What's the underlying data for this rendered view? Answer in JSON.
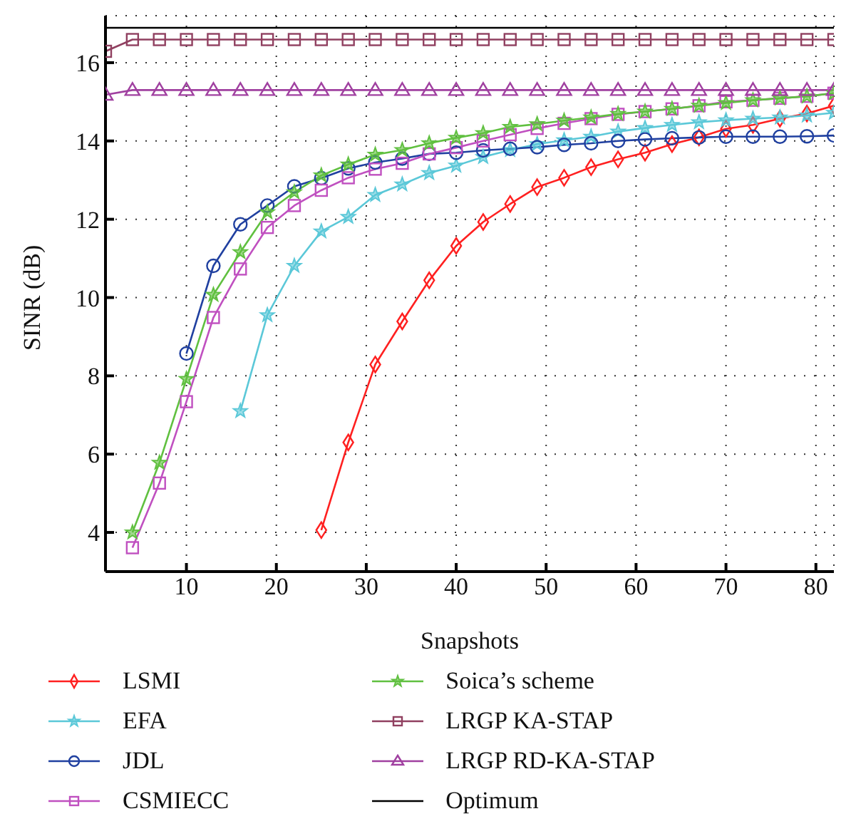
{
  "chart_data": {
    "type": "line",
    "xlabel": "Snapshots",
    "ylabel": "SINR (dB)",
    "x": [
      1,
      4,
      7,
      10,
      13,
      16,
      19,
      22,
      25,
      28,
      31,
      34,
      37,
      40,
      43,
      46,
      49,
      52,
      55,
      58,
      61,
      64,
      67,
      70,
      73,
      76,
      79,
      82
    ],
    "xlim": [
      1,
      82
    ],
    "xticks": [
      10,
      20,
      30,
      40,
      50,
      60,
      70,
      80
    ],
    "ylim": [
      3,
      17.2
    ],
    "yticks": [
      4,
      6,
      8,
      10,
      12,
      14,
      16
    ],
    "grid": true,
    "legend": "bottom",
    "line_style": "solid",
    "series": [
      {
        "name": "LSMI",
        "color": "#ff2020",
        "marker": "diamond",
        "values": [
          null,
          null,
          null,
          null,
          null,
          null,
          null,
          null,
          4.06,
          6.3,
          8.29,
          9.39,
          10.44,
          11.32,
          11.93,
          12.39,
          12.82,
          13.06,
          13.33,
          13.53,
          13.7,
          13.92,
          14.09,
          14.31,
          14.41,
          14.57,
          14.7,
          14.9
        ]
      },
      {
        "name": "EFA",
        "color": "#5bc8d8",
        "marker": "star",
        "values": [
          null,
          null,
          null,
          null,
          null,
          7.1,
          9.55,
          10.81,
          11.69,
          12.06,
          12.62,
          12.89,
          13.18,
          13.37,
          13.59,
          13.77,
          13.92,
          14.02,
          14.11,
          14.24,
          14.33,
          14.41,
          14.48,
          14.53,
          14.57,
          14.6,
          14.65,
          14.72
        ]
      },
      {
        "name": "JDL",
        "color": "#2040a0",
        "marker": "circle",
        "values": [
          null,
          null,
          null,
          8.57,
          10.81,
          11.87,
          12.35,
          12.84,
          13.05,
          13.3,
          13.45,
          13.55,
          13.67,
          13.7,
          13.76,
          13.8,
          13.84,
          13.9,
          13.94,
          14.0,
          14.04,
          14.07,
          14.09,
          14.11,
          14.11,
          14.11,
          14.12,
          14.14
        ]
      },
      {
        "name": "CSMIECC",
        "color": "#c050c0",
        "marker": "square",
        "values": [
          null,
          3.61,
          5.26,
          7.34,
          9.49,
          10.73,
          11.79,
          12.35,
          12.74,
          13.06,
          13.28,
          13.43,
          13.67,
          13.83,
          14.0,
          14.16,
          14.32,
          14.45,
          14.57,
          14.68,
          14.75,
          14.82,
          14.9,
          15.0,
          15.04,
          15.09,
          15.14,
          15.22
        ]
      },
      {
        "name": "Soica’s scheme",
        "color": "#60c040",
        "marker": "star",
        "values": [
          null,
          4.0,
          5.78,
          7.92,
          10.07,
          11.16,
          12.18,
          12.69,
          13.12,
          13.4,
          13.65,
          13.77,
          13.94,
          14.08,
          14.2,
          14.36,
          14.43,
          14.52,
          14.6,
          14.69,
          14.75,
          14.82,
          14.9,
          14.97,
          15.04,
          15.09,
          15.14,
          15.22
        ]
      },
      {
        "name": "LRGP KA-STAP",
        "color": "#904060",
        "marker": "square",
        "values": [
          16.29,
          16.59,
          16.59,
          16.59,
          16.59,
          16.59,
          16.59,
          16.59,
          16.59,
          16.59,
          16.59,
          16.59,
          16.59,
          16.59,
          16.59,
          16.59,
          16.59,
          16.59,
          16.59,
          16.59,
          16.59,
          16.59,
          16.59,
          16.59,
          16.59,
          16.59,
          16.59,
          16.59
        ]
      },
      {
        "name": "LRGP RD-KA-STAP",
        "color": "#a040a0",
        "marker": "triangle",
        "values": [
          15.18,
          15.3,
          15.3,
          15.3,
          15.3,
          15.3,
          15.3,
          15.3,
          15.3,
          15.3,
          15.3,
          15.3,
          15.3,
          15.3,
          15.3,
          15.3,
          15.3,
          15.3,
          15.3,
          15.3,
          15.3,
          15.3,
          15.3,
          15.3,
          15.3,
          15.3,
          15.3,
          15.3
        ]
      },
      {
        "name": "Optimum",
        "color": "#000000",
        "marker": "none",
        "values": [
          16.89,
          16.89,
          16.89,
          16.89,
          16.89,
          16.89,
          16.89,
          16.89,
          16.89,
          16.89,
          16.89,
          16.89,
          16.89,
          16.89,
          16.89,
          16.89,
          16.89,
          16.89,
          16.89,
          16.89,
          16.89,
          16.89,
          16.89,
          16.89,
          16.89,
          16.89,
          16.89,
          16.89
        ]
      }
    ]
  }
}
